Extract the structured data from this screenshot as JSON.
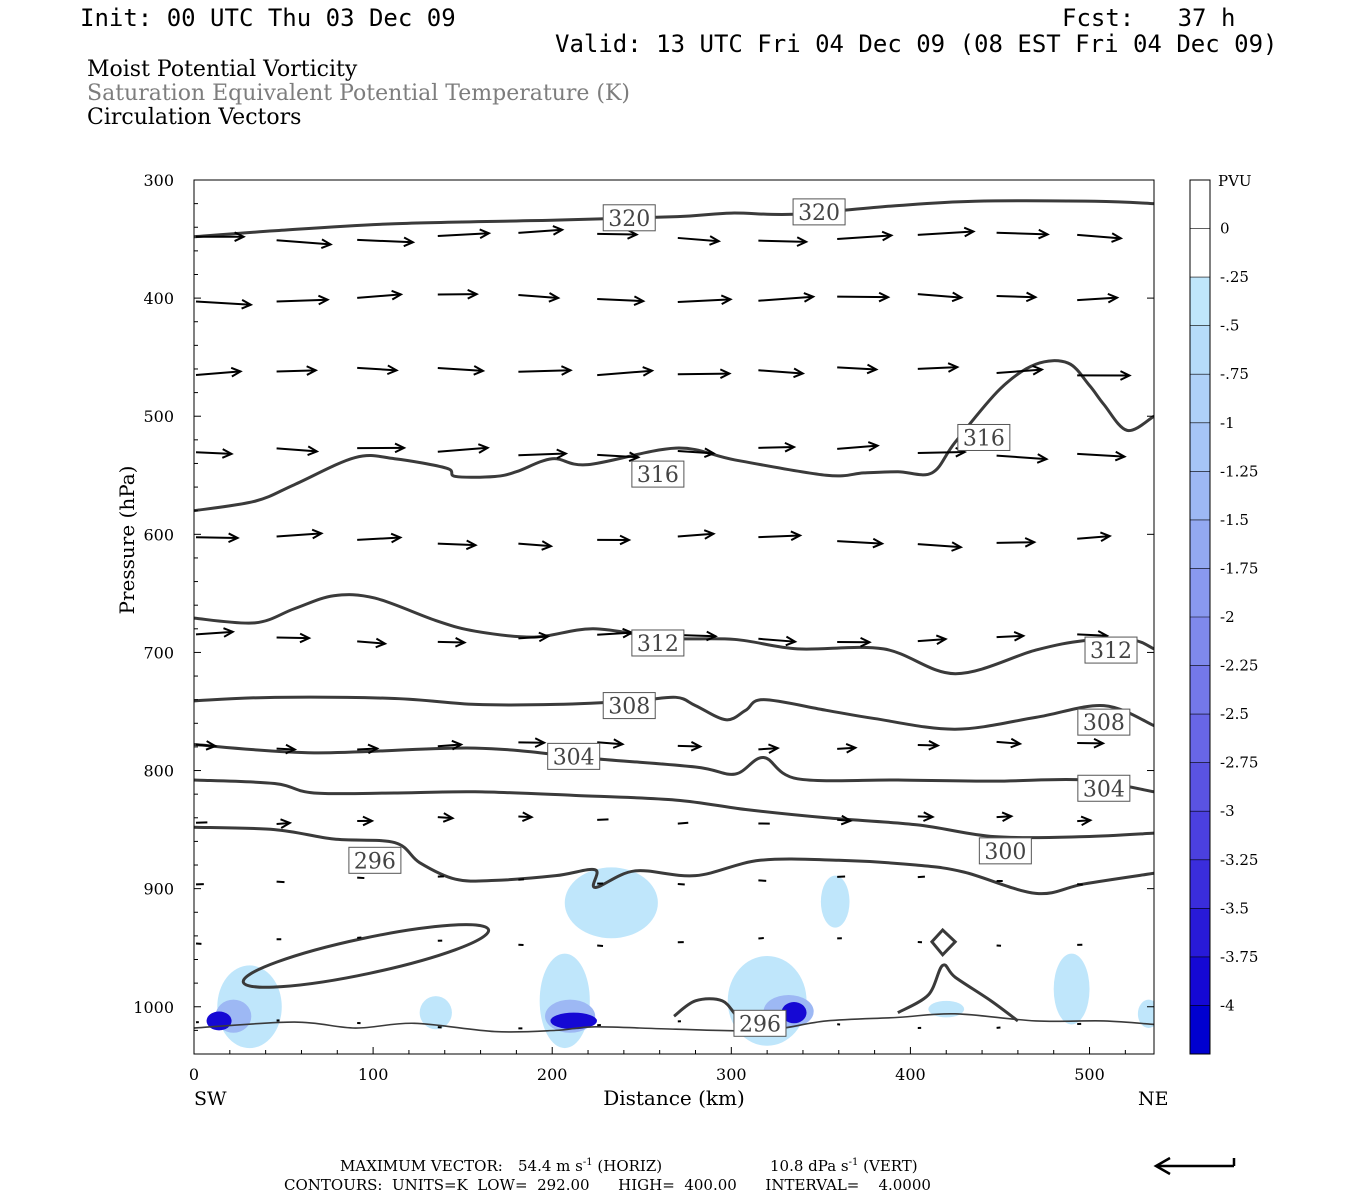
{
  "header": {
    "init": "Init: 00 UTC Thu 03 Dec 09",
    "fcst": "Fcst:   37 h",
    "valid": "Valid: 13 UTC Fri 04 Dec 09 (08 EST Fri 04 Dec 09)"
  },
  "fields": {
    "field1": "Moist Potential Vorticity",
    "field2": "Saturation Equivalent Potential Temperature (K)",
    "field3": "Circulation Vectors"
  },
  "footer": {
    "max_label": "MAXIMUM VECTOR:",
    "max_horiz": "54.4 m s",
    "horiz_tag": "(HORIZ)",
    "max_vert": "10.8 dPa s",
    "vert_tag": "(VERT)",
    "exp": "-1",
    "contours": "CONTOURS:  UNITS=K  LOW=  292.00      HIGH=  400.00      INTERVAL=    4.0000"
  },
  "colors": {
    "contour": "#3a3a3a",
    "arrow": "#000000",
    "light_blue": "#bfe6fb"
  },
  "chart_data": {
    "type": "cross-section",
    "xlabel": "Distance (km)",
    "ylabel": "Pressure (hPa)",
    "x_range": [
      0,
      536
    ],
    "y_range": [
      300,
      1040
    ],
    "x_ticks": [
      0,
      100,
      200,
      300,
      400,
      500
    ],
    "y_ticks": [
      300,
      400,
      500,
      600,
      700,
      800,
      900,
      1000
    ],
    "x_end_labels": {
      "left": "SW",
      "right": "NE"
    },
    "contour_labels": [
      {
        "value": "320",
        "x": 243,
        "p": 332
      },
      {
        "value": "320",
        "x": 349,
        "p": 327
      },
      {
        "value": "316",
        "x": 259,
        "p": 549
      },
      {
        "value": "316",
        "x": 441,
        "p": 518
      },
      {
        "value": "312",
        "x": 259,
        "p": 692
      },
      {
        "value": "312",
        "x": 512,
        "p": 698
      },
      {
        "value": "308",
        "x": 243,
        "p": 745
      },
      {
        "value": "308",
        "x": 508,
        "p": 759
      },
      {
        "value": "304",
        "x": 212,
        "p": 788
      },
      {
        "value": "304",
        "x": 508,
        "p": 815
      },
      {
        "value": "300",
        "x": 453,
        "p": 868
      },
      {
        "value": "296",
        "x": 101,
        "p": 876
      },
      {
        "value": "296",
        "x": 316,
        "p": 1014
      }
    ],
    "contours": [
      {
        "value": 320,
        "points": [
          [
            0,
            348
          ],
          [
            45,
            343
          ],
          [
            112,
            337
          ],
          [
            202,
            334
          ],
          [
            270,
            331
          ],
          [
            300,
            328
          ],
          [
            335,
            329
          ],
          [
            390,
            322
          ],
          [
            436,
            318
          ],
          [
            503,
            318
          ],
          [
            536,
            320
          ]
        ]
      },
      {
        "value": 316,
        "points": [
          [
            0,
            580
          ],
          [
            34,
            572
          ],
          [
            56,
            558
          ],
          [
            90,
            535
          ],
          [
            112,
            536
          ],
          [
            141,
            544
          ],
          [
            146,
            551
          ],
          [
            168,
            551
          ],
          [
            180,
            547
          ],
          [
            200,
            536
          ],
          [
            220,
            541
          ],
          [
            269,
            527
          ],
          [
            302,
            537
          ],
          [
            353,
            550
          ],
          [
            374,
            548
          ],
          [
            393,
            547
          ],
          [
            412,
            548
          ],
          [
            425,
            522
          ],
          [
            450,
            477
          ],
          [
            470,
            456
          ],
          [
            488,
            455
          ],
          [
            500,
            474
          ],
          [
            508,
            490
          ],
          [
            521,
            512
          ],
          [
            536,
            500
          ]
        ]
      },
      {
        "value": 312,
        "points": [
          [
            0,
            671
          ],
          [
            34,
            675
          ],
          [
            56,
            663
          ],
          [
            78,
            652
          ],
          [
            101,
            654
          ],
          [
            135,
            673
          ],
          [
            157,
            682
          ],
          [
            190,
            687
          ],
          [
            223,
            680
          ],
          [
            263,
            688
          ],
          [
            302,
            689
          ],
          [
            337,
            697
          ],
          [
            385,
            697
          ],
          [
            425,
            718
          ],
          [
            470,
            698
          ],
          [
            497,
            690
          ],
          [
            523,
            689
          ],
          [
            536,
            697
          ]
        ]
      },
      {
        "value": 308,
        "points": [
          [
            0,
            741
          ],
          [
            45,
            738
          ],
          [
            112,
            739
          ],
          [
            157,
            744
          ],
          [
            202,
            744
          ],
          [
            246,
            741
          ],
          [
            269,
            738
          ],
          [
            280,
            745
          ],
          [
            297,
            757
          ],
          [
            308,
            749
          ],
          [
            318,
            740
          ],
          [
            353,
            749
          ],
          [
            380,
            756
          ],
          [
            425,
            765
          ],
          [
            470,
            755
          ],
          [
            508,
            745
          ],
          [
            536,
            762
          ]
        ]
      },
      {
        "value": 304,
        "points": [
          [
            0,
            778
          ],
          [
            67,
            785
          ],
          [
            157,
            781
          ],
          [
            224,
            790
          ],
          [
            280,
            797
          ],
          [
            302,
            803
          ],
          [
            318,
            789
          ],
          [
            337,
            807
          ],
          [
            393,
            808
          ],
          [
            447,
            809
          ],
          [
            497,
            808
          ],
          [
            536,
            818
          ]
        ]
      },
      {
        "value": 300,
        "points": [
          [
            0,
            808
          ],
          [
            45,
            811
          ],
          [
            67,
            819
          ],
          [
            112,
            819
          ],
          [
            157,
            818
          ],
          [
            212,
            821
          ],
          [
            269,
            825
          ],
          [
            308,
            833
          ],
          [
            353,
            840
          ],
          [
            404,
            846
          ],
          [
            447,
            856
          ],
          [
            497,
            856
          ],
          [
            536,
            853
          ]
        ]
      },
      {
        "value": 296,
        "points": [
          [
            0,
            848
          ],
          [
            45,
            850
          ],
          [
            78,
            858
          ],
          [
            112,
            861
          ],
          [
            126,
            878
          ],
          [
            146,
            892
          ],
          [
            168,
            893
          ],
          [
            202,
            889
          ],
          [
            224,
            884
          ],
          [
            224,
            899
          ],
          [
            246,
            885
          ],
          [
            280,
            889
          ],
          [
            316,
            876
          ],
          [
            360,
            876
          ],
          [
            403,
            880
          ],
          [
            430,
            886
          ],
          [
            470,
            904
          ],
          [
            497,
            896
          ],
          [
            536,
            887
          ]
        ]
      },
      {
        "value": 296,
        "points": [
          [
            0,
            1018
          ],
          [
            56,
            1013
          ],
          [
            90,
            1018
          ],
          [
            123,
            1014
          ],
          [
            168,
            1021
          ],
          [
            202,
            1020
          ],
          [
            224,
            1017
          ],
          [
            269,
            1019
          ],
          [
            318,
            1020
          ],
          [
            353,
            1012
          ],
          [
            393,
            1009
          ],
          [
            425,
            1006
          ],
          [
            470,
            1012
          ],
          [
            508,
            1012
          ],
          [
            536,
            1015
          ]
        ]
      }
    ],
    "arrow_levels_hPa": [
      348,
      400,
      462,
      530,
      605,
      688,
      779,
      842,
      893,
      945,
      1015
    ],
    "arrow_columns_km": [
      0,
      45,
      90,
      135,
      180,
      224,
      269,
      314,
      358,
      403,
      447,
      492
    ],
    "pv_colorbar": {
      "label": "PVU",
      "levels": [
        "0",
        "-.25",
        "-.5",
        "-.75",
        "-1",
        "-1.25",
        "-1.5",
        "-1.75",
        "-2",
        "-2.25",
        "-2.5",
        "-2.75",
        "-3",
        "-3.25",
        "-3.5",
        "-3.75",
        "-4"
      ],
      "colors": [
        "#ffffff",
        "#ffffff",
        "#bfe6fb",
        "#b6dcfa",
        "#afd1f8",
        "#a6c5f6",
        "#9db8f4",
        "#93a9f1",
        "#8999ef",
        "#7f89ec",
        "#7478e9",
        "#6866e6",
        "#5a53e2",
        "#4b40df",
        "#3a2ddc",
        "#281ad8",
        "#1508d4",
        "#0000d0"
      ]
    },
    "pv_regions": [
      {
        "value": -0.25,
        "center_km": 31,
        "center_hPa": 1000
      },
      {
        "value": -0.25,
        "center_km": 135,
        "center_hPa": 1005
      },
      {
        "value": -0.25,
        "center_km": 210,
        "center_hPa": 995
      },
      {
        "value": -0.25,
        "center_km": 230,
        "center_hPa": 915
      },
      {
        "value": -0.25,
        "center_km": 320,
        "center_hPa": 995
      },
      {
        "value": -0.25,
        "center_km": 360,
        "center_hPa": 910
      },
      {
        "value": -0.25,
        "center_km": 420,
        "center_hPa": 1000
      },
      {
        "value": -0.25,
        "center_km": 490,
        "center_hPa": 985
      },
      {
        "value": -0.25,
        "center_km": 533,
        "center_hPa": 1005
      },
      {
        "value": -4,
        "center_km": 14,
        "center_hPa": 1012
      },
      {
        "value": -4,
        "center_km": 212,
        "center_hPa": 1012
      },
      {
        "value": -4,
        "center_km": 335,
        "center_hPa": 1005
      }
    ],
    "reference_vector": "←"
  }
}
